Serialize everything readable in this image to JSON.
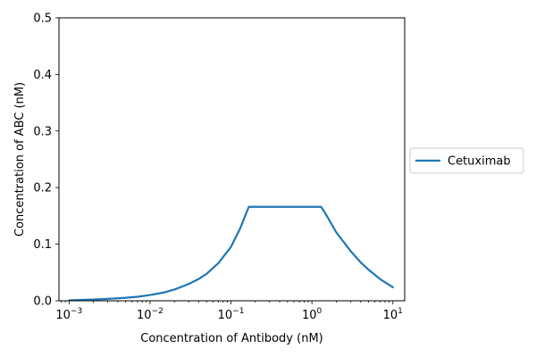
{
  "chart_data": {
    "type": "line",
    "xlabel": "Concentration of Antibody (nM)",
    "ylabel": "Concentration of ABC (nM)",
    "xscale": "log",
    "xlim": [
      0.00075,
      14
    ],
    "ylim": [
      0,
      0.5
    ],
    "x_ticks": [
      {
        "value": 0.001,
        "base": "10",
        "exp": "−3"
      },
      {
        "value": 0.01,
        "base": "10",
        "exp": "−2"
      },
      {
        "value": 0.1,
        "base": "10",
        "exp": "−1"
      },
      {
        "value": 1,
        "base": "10",
        "exp": "0"
      },
      {
        "value": 10,
        "base": "10",
        "exp": "1"
      }
    ],
    "y_ticks": [
      {
        "value": 0.0,
        "label": "0.0"
      },
      {
        "value": 0.1,
        "label": "0.1"
      },
      {
        "value": 0.2,
        "label": "0.2"
      },
      {
        "value": 0.3,
        "label": "0.3"
      },
      {
        "value": 0.4,
        "label": "0.4"
      },
      {
        "value": 0.5,
        "label": "0.5"
      }
    ],
    "legend_position": "outside-right",
    "grid": false,
    "series": [
      {
        "name": "Cetuximab",
        "color": "#1f77b4",
        "points": [
          [
            0.001,
            0.0009
          ],
          [
            0.002,
            0.0022
          ],
          [
            0.003,
            0.0033
          ],
          [
            0.005,
            0.0053
          ],
          [
            0.007,
            0.0071
          ],
          [
            0.01,
            0.0102
          ],
          [
            0.015,
            0.0148
          ],
          [
            0.02,
            0.0198
          ],
          [
            0.03,
            0.0296
          ],
          [
            0.04,
            0.0386
          ],
          [
            0.05,
            0.0476
          ],
          [
            0.07,
            0.0666
          ],
          [
            0.1,
            0.0952
          ],
          [
            0.13,
            0.128
          ],
          [
            0.166,
            0.166
          ],
          [
            1.0,
            0.166
          ],
          [
            1.3,
            0.166
          ],
          [
            1.5,
            0.152
          ],
          [
            2.0,
            0.121
          ],
          [
            3.0,
            0.088
          ],
          [
            4.0,
            0.068
          ],
          [
            5.0,
            0.055
          ],
          [
            7.0,
            0.038
          ],
          [
            10.0,
            0.024
          ]
        ]
      }
    ]
  }
}
